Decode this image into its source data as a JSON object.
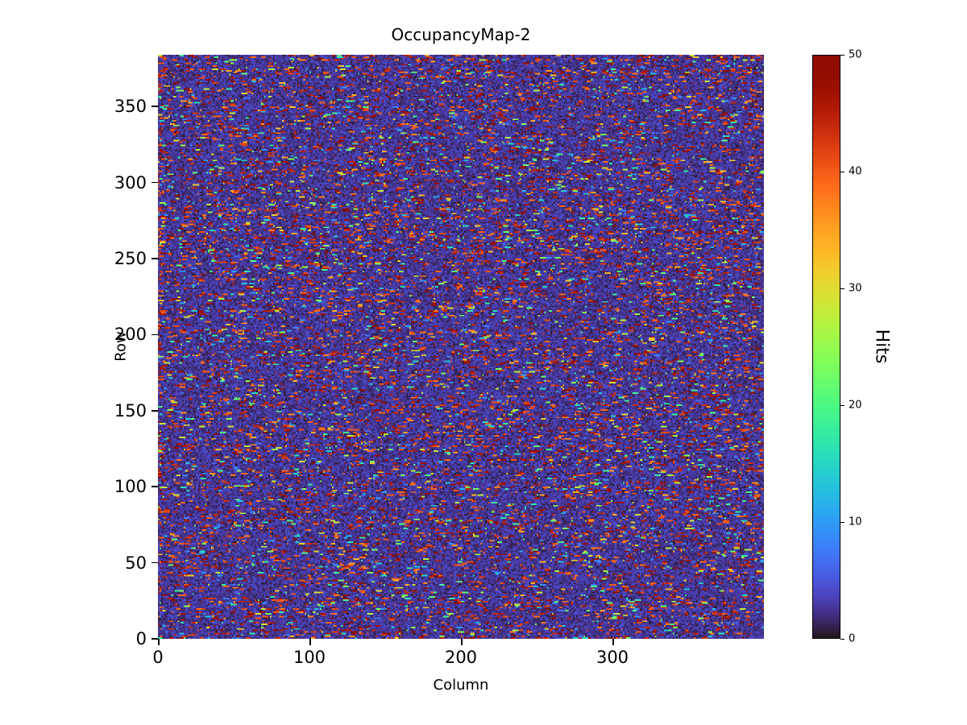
{
  "title": "OccupancyMap-2",
  "xlabel": "Column",
  "ylabel": "Row",
  "colorbar": {
    "label": "Hits",
    "min": 0,
    "max": 50,
    "ticks": [
      0,
      10,
      20,
      30,
      40,
      50
    ]
  },
  "chart_data": {
    "type": "heatmap",
    "title": "OccupancyMap-2",
    "xlabel": "Column",
    "ylabel": "Row",
    "colorbar_label": "Hits",
    "colormap": "turbo",
    "zlim": [
      0,
      50
    ],
    "xlim": [
      0,
      400
    ],
    "ylim": [
      0,
      384
    ],
    "grid": {
      "cols": 400,
      "rows": 384
    },
    "x_ticks": [
      0,
      100,
      200,
      300
    ],
    "y_ticks": [
      0,
      50,
      100,
      150,
      200,
      250,
      300,
      350
    ],
    "colorbar_ticks": [
      0,
      10,
      20,
      30,
      40,
      50
    ],
    "legend": "none",
    "grid_lines": false,
    "pattern": {
      "description": "dense random pixel-occupancy speckle: dark navy/purple low-count background (0-4 hits) with frequent short horizontal dashes of high counts (red/dark-red 38-50 hits), sparser mid-count dots (blue/cyan/green/yellow/orange 6-37 hits), some rows hotter than others, slightly hotter left edge",
      "seed": 7,
      "background_max": 3.5,
      "hot_fraction": 0.07,
      "hot_row_fraction": 0.3,
      "hot_row_multiplier": 1.8,
      "edge_multiplier": 3,
      "high_fraction_of_hot": 0.72,
      "high_range": [
        38,
        50
      ],
      "mid_range": [
        6,
        37
      ],
      "dash_extend_prob": 0.55,
      "max_dash_length": 4
    }
  }
}
